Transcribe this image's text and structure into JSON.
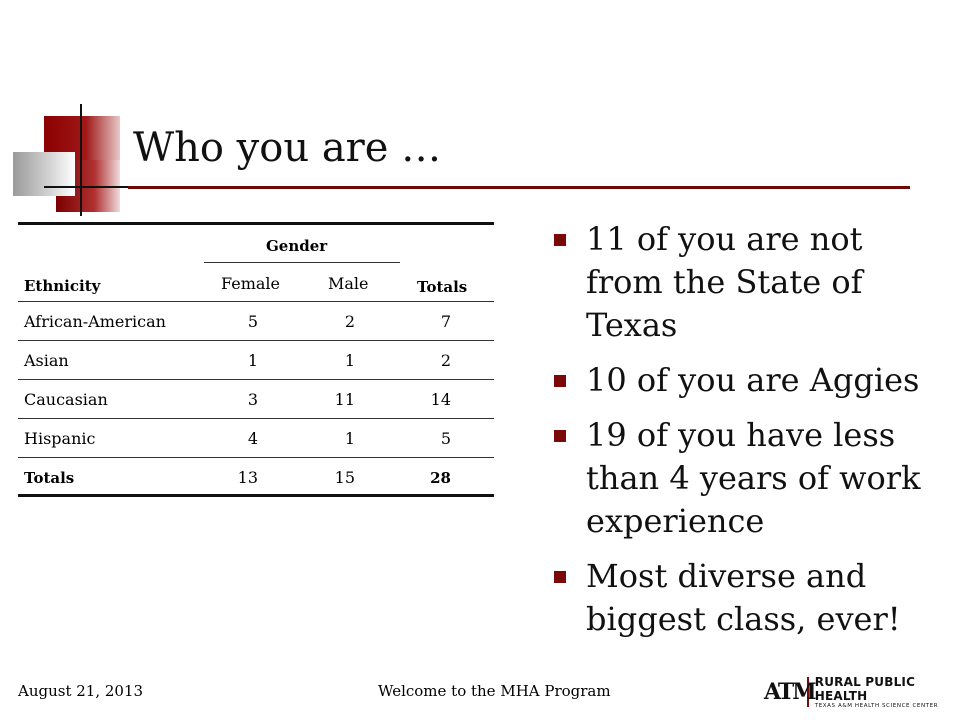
{
  "slide": {
    "title": "Who you are …"
  },
  "table": {
    "header_group": "Gender",
    "col_ethnicity": "Ethnicity",
    "col_female": "Female",
    "col_male": "Male",
    "col_totals": "Totals",
    "rows": [
      {
        "label": "African-American",
        "female": "5",
        "male": "2",
        "total": "7"
      },
      {
        "label": "Asian",
        "female": "1",
        "male": "1",
        "total": "2"
      },
      {
        "label": "Caucasian",
        "female": "3",
        "male": "11",
        "total": "14"
      },
      {
        "label": "Hispanic",
        "female": "4",
        "male": "1",
        "total": "5"
      }
    ],
    "totals_row": {
      "label": "Totals",
      "female": "13",
      "male": "15",
      "total": "28"
    }
  },
  "bullets": [
    "11 of you are not from the State of Texas",
    "10 of you are Aggies",
    "19 of you have less than 4 years of work experience",
    "Most diverse and biggest class, ever!"
  ],
  "footer": {
    "date": "August 21, 2013",
    "center": "Welcome to the MHA Program",
    "logo_mark": "ATM",
    "logo_main": "RURAL PUBLIC HEALTH",
    "logo_sub": "TEXAS A&M HEALTH SCIENCE CENTER"
  },
  "colors": {
    "accent": "#7a0a0a",
    "bullet": "#7a0a0a"
  }
}
